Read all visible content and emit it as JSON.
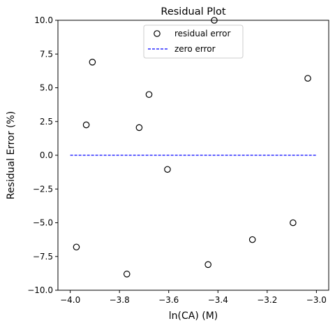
{
  "chart_data": {
    "type": "scatter",
    "title": "Residual Plot",
    "xlabel": "ln(CA) (M)",
    "ylabel": "Residual Error (%)",
    "xlim": [
      -4.05,
      -2.95
    ],
    "ylim": [
      -10.0,
      10.0
    ],
    "xticks": [
      -4.0,
      -3.8,
      -3.6,
      -3.4,
      -3.2,
      -3.0
    ],
    "xtick_labels": [
      "−4.0",
      "−3.8",
      "−3.6",
      "−3.4",
      "−3.2",
      "−3.0"
    ],
    "yticks": [
      -10.0,
      -7.5,
      -5.0,
      -2.5,
      0.0,
      2.5,
      5.0,
      7.5,
      10.0
    ],
    "ytick_labels": [
      "−10.0",
      "−7.5",
      "−5.0",
      "−2.5",
      "0.0",
      "2.5",
      "5.0",
      "7.5",
      "10.0"
    ],
    "grid": false,
    "legend_position": "top-center",
    "series": [
      {
        "name": "residual error",
        "kind": "scatter",
        "marker": "open-circle",
        "color": "#000000",
        "x": [
          -3.975,
          -3.935,
          -3.91,
          -3.77,
          -3.72,
          -3.68,
          -3.605,
          -3.44,
          -3.415,
          -3.26,
          -3.095,
          -3.035
        ],
        "y": [
          -6.8,
          2.25,
          6.9,
          -8.8,
          2.05,
          4.5,
          -1.05,
          -8.1,
          10.0,
          -6.25,
          -5.0,
          5.7
        ]
      },
      {
        "name": "zero error",
        "kind": "line",
        "style": "dashed",
        "color": "#0000ff",
        "x": [
          -4.0,
          -3.0
        ],
        "y": [
          0.0,
          0.0
        ]
      }
    ]
  }
}
